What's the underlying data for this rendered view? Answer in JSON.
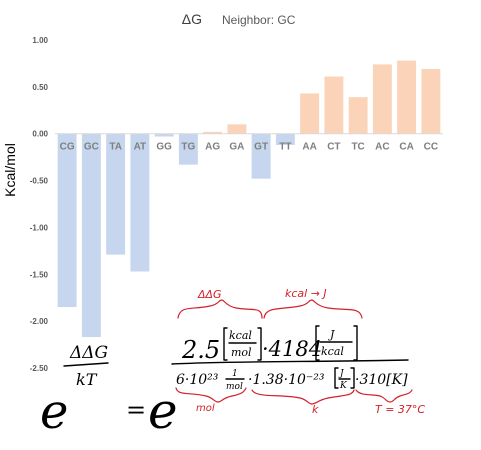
{
  "chart_data": {
    "type": "bar",
    "title": "ΔG",
    "subtitle": "Neighbor: GC",
    "ylabel": "Kcal/mol",
    "ylim": [
      -2.5,
      1.0
    ],
    "yticks": [
      "1.00",
      "0.50",
      "0.00",
      "-0.50",
      "-1.00",
      "-1.50",
      "-2.00",
      "-2.50"
    ],
    "categories": [
      "CG",
      "GC",
      "TA",
      "AT",
      "GG",
      "TG",
      "AG",
      "GA",
      "GT",
      "TT",
      "AA",
      "CT",
      "TC",
      "AC",
      "CA",
      "CC"
    ],
    "values": [
      -1.85,
      -2.17,
      -1.29,
      -1.47,
      -0.03,
      -0.33,
      0.02,
      0.1,
      -0.48,
      -0.12,
      0.43,
      0.61,
      0.39,
      0.74,
      0.78,
      0.69
    ],
    "colors": {
      "negative": "#c6d6ee",
      "positive": "#fad3b8",
      "axis": "#d9d9d9"
    },
    "grid": false
  },
  "annotations": {
    "exponent_numerator": "ΔΔG",
    "exponent_denominator": "kT",
    "base_left": "e",
    "equals": "=",
    "base_right": "e",
    "label_ddg": "ΔΔG",
    "label_kcal_to_j": "kcal → J",
    "frac_numerator": "2.5[kcal/mol]·4184[J/kcal]",
    "frac_denominator": "6·10²³ 1/mol · 1.38·10⁻²³[J/K] · 310[K]",
    "num_coef": "2.5",
    "num_unit_top": "kcal",
    "num_unit_bottom": "mol",
    "num_factor": "·4184",
    "num_j": "J",
    "num_kcal": "kcal",
    "den_avogadro": "6·10²³",
    "den_permol_top": "1",
    "den_permol_bottom": "mol",
    "den_boltz": "·1.38·10⁻²³",
    "den_jk_top": "J",
    "den_jk_bottom": "K",
    "den_temp": "·310[K]",
    "label_mol": "mol",
    "label_k": "k",
    "label_temp": "T = 37°C"
  }
}
